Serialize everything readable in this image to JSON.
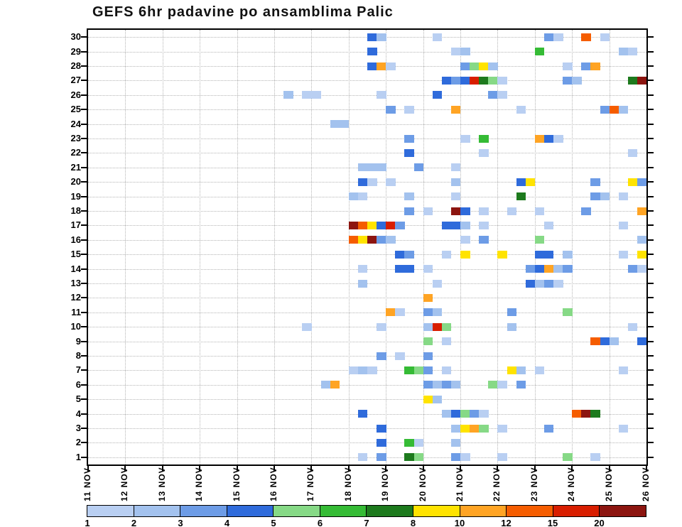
{
  "title": "GEFS 6hr padavine po ansamblima Palic",
  "chart_data": {
    "type": "heatmap",
    "title": "GEFS 6hr padavine po ansamblima Palic",
    "x_tick_labels": [
      "11 NOV",
      "12 NOV",
      "13 NOV",
      "14 NOV",
      "15 NOV",
      "16 NOV",
      "17 NOV",
      "18 NOV",
      "19 NOV",
      "20 NOV",
      "21 NOV",
      "22 NOV",
      "23 NOV",
      "24 NOV",
      "25 NOV",
      "26 NOV"
    ],
    "cols_per_day": 4,
    "n_cols": 60,
    "y_tick_labels": [
      "30",
      "29",
      "28",
      "27",
      "26",
      "25",
      "24",
      "23",
      "22",
      "21",
      "20",
      "19",
      "18",
      "17",
      "16",
      "15",
      "14",
      "13",
      "12",
      "11",
      "10",
      "9",
      "8",
      "7",
      "6",
      "5",
      "4",
      "3",
      "2",
      "1"
    ],
    "colorbar": {
      "tick_labels": [
        "1",
        "2",
        "3",
        "4",
        "5",
        "6",
        "7",
        "8",
        "10",
        "12",
        "15",
        "20"
      ],
      "values": [
        1,
        2,
        3,
        4,
        5,
        6,
        7,
        8,
        10,
        12,
        15,
        20
      ],
      "colors": [
        "#b9cff2",
        "#a3c2ee",
        "#6d9ce6",
        "#2f6bdb",
        "#86d986",
        "#35bb35",
        "#1d7a1d",
        "#ffe300",
        "#ffa424",
        "#f55d00",
        "#d81e00",
        "#8c1510"
      ]
    },
    "cells": [
      [
        30,
        30,
        4
      ],
      [
        30,
        31,
        2
      ],
      [
        30,
        37,
        1
      ],
      [
        30,
        49,
        3
      ],
      [
        30,
        50,
        1
      ],
      [
        30,
        53,
        12
      ],
      [
        30,
        55,
        1
      ],
      [
        29,
        30,
        4
      ],
      [
        29,
        39,
        1
      ],
      [
        29,
        40,
        2
      ],
      [
        29,
        48,
        6
      ],
      [
        29,
        57,
        2
      ],
      [
        29,
        58,
        1
      ],
      [
        28,
        30,
        4
      ],
      [
        28,
        31,
        10
      ],
      [
        28,
        32,
        1
      ],
      [
        28,
        40,
        3
      ],
      [
        28,
        41,
        5
      ],
      [
        28,
        42,
        8
      ],
      [
        28,
        43,
        2
      ],
      [
        28,
        51,
        1
      ],
      [
        28,
        53,
        3
      ],
      [
        28,
        54,
        10
      ],
      [
        27,
        38,
        4
      ],
      [
        27,
        39,
        3
      ],
      [
        27,
        40,
        4
      ],
      [
        27,
        41,
        15
      ],
      [
        27,
        42,
        7
      ],
      [
        27,
        43,
        5
      ],
      [
        27,
        44,
        1
      ],
      [
        27,
        51,
        3
      ],
      [
        27,
        52,
        2
      ],
      [
        27,
        58,
        7
      ],
      [
        27,
        59,
        20
      ],
      [
        26,
        21,
        2
      ],
      [
        26,
        23,
        1
      ],
      [
        26,
        24,
        1
      ],
      [
        26,
        31,
        1
      ],
      [
        26,
        37,
        4
      ],
      [
        26,
        43,
        3
      ],
      [
        26,
        44,
        1
      ],
      [
        25,
        32,
        3
      ],
      [
        25,
        34,
        1
      ],
      [
        25,
        39,
        10
      ],
      [
        25,
        46,
        1
      ],
      [
        25,
        55,
        3
      ],
      [
        25,
        56,
        12
      ],
      [
        25,
        57,
        2
      ],
      [
        24,
        26,
        2
      ],
      [
        24,
        27,
        2
      ],
      [
        23,
        34,
        3
      ],
      [
        23,
        40,
        1
      ],
      [
        23,
        42,
        6
      ],
      [
        23,
        48,
        10
      ],
      [
        23,
        49,
        4
      ],
      [
        23,
        50,
        1
      ],
      [
        22,
        34,
        4
      ],
      [
        22,
        42,
        1
      ],
      [
        22,
        58,
        1
      ],
      [
        21,
        29,
        2
      ],
      [
        21,
        30,
        2
      ],
      [
        21,
        31,
        2
      ],
      [
        21,
        35,
        3
      ],
      [
        21,
        39,
        1
      ],
      [
        20,
        29,
        4
      ],
      [
        20,
        30,
        1
      ],
      [
        20,
        32,
        1
      ],
      [
        20,
        39,
        2
      ],
      [
        20,
        46,
        4
      ],
      [
        20,
        47,
        8
      ],
      [
        20,
        54,
        3
      ],
      [
        20,
        58,
        8
      ],
      [
        20,
        59,
        3
      ],
      [
        19,
        28,
        2
      ],
      [
        19,
        29,
        1
      ],
      [
        19,
        34,
        2
      ],
      [
        19,
        39,
        1
      ],
      [
        19,
        46,
        7
      ],
      [
        19,
        54,
        3
      ],
      [
        19,
        55,
        2
      ],
      [
        19,
        57,
        1
      ],
      [
        18,
        34,
        3
      ],
      [
        18,
        36,
        1
      ],
      [
        18,
        39,
        20
      ],
      [
        18,
        40,
        4
      ],
      [
        18,
        42,
        1
      ],
      [
        18,
        45,
        1
      ],
      [
        18,
        48,
        1
      ],
      [
        18,
        53,
        3
      ],
      [
        18,
        59,
        10
      ],
      [
        17,
        28,
        20
      ],
      [
        17,
        29,
        12
      ],
      [
        17,
        30,
        8
      ],
      [
        17,
        31,
        4
      ],
      [
        17,
        32,
        15
      ],
      [
        17,
        33,
        3
      ],
      [
        17,
        38,
        4
      ],
      [
        17,
        39,
        4
      ],
      [
        17,
        40,
        2
      ],
      [
        17,
        42,
        1
      ],
      [
        17,
        49,
        1
      ],
      [
        17,
        57,
        1
      ],
      [
        16,
        28,
        12
      ],
      [
        16,
        29,
        8
      ],
      [
        16,
        30,
        20
      ],
      [
        16,
        31,
        3
      ],
      [
        16,
        32,
        2
      ],
      [
        16,
        40,
        1
      ],
      [
        16,
        42,
        3
      ],
      [
        16,
        48,
        5
      ],
      [
        16,
        59,
        2
      ],
      [
        15,
        33,
        4
      ],
      [
        15,
        34,
        3
      ],
      [
        15,
        38,
        1
      ],
      [
        15,
        40,
        8
      ],
      [
        15,
        44,
        8
      ],
      [
        15,
        48,
        4
      ],
      [
        15,
        49,
        4
      ],
      [
        15,
        51,
        2
      ],
      [
        15,
        57,
        1
      ],
      [
        15,
        59,
        8
      ],
      [
        14,
        29,
        1
      ],
      [
        14,
        33,
        4
      ],
      [
        14,
        34,
        4
      ],
      [
        14,
        36,
        1
      ],
      [
        14,
        47,
        3
      ],
      [
        14,
        48,
        4
      ],
      [
        14,
        49,
        10
      ],
      [
        14,
        50,
        2
      ],
      [
        14,
        51,
        3
      ],
      [
        14,
        58,
        3
      ],
      [
        14,
        59,
        1
      ],
      [
        13,
        29,
        2
      ],
      [
        13,
        37,
        1
      ],
      [
        13,
        47,
        4
      ],
      [
        13,
        48,
        2
      ],
      [
        13,
        49,
        3
      ],
      [
        13,
        50,
        1
      ],
      [
        12,
        36,
        10
      ],
      [
        11,
        32,
        10
      ],
      [
        11,
        33,
        1
      ],
      [
        11,
        36,
        3
      ],
      [
        11,
        37,
        2
      ],
      [
        11,
        45,
        3
      ],
      [
        11,
        51,
        5
      ],
      [
        10,
        23,
        1
      ],
      [
        10,
        31,
        1
      ],
      [
        10,
        36,
        2
      ],
      [
        10,
        37,
        15
      ],
      [
        10,
        38,
        5
      ],
      [
        10,
        45,
        2
      ],
      [
        10,
        58,
        1
      ],
      [
        9,
        36,
        5
      ],
      [
        9,
        38,
        1
      ],
      [
        9,
        54,
        12
      ],
      [
        9,
        55,
        4
      ],
      [
        9,
        56,
        2
      ],
      [
        9,
        59,
        4
      ],
      [
        8,
        31,
        3
      ],
      [
        8,
        33,
        1
      ],
      [
        8,
        36,
        3
      ],
      [
        7,
        28,
        1
      ],
      [
        7,
        29,
        2
      ],
      [
        7,
        30,
        1
      ],
      [
        7,
        34,
        6
      ],
      [
        7,
        35,
        5
      ],
      [
        7,
        36,
        3
      ],
      [
        7,
        38,
        1
      ],
      [
        7,
        45,
        8
      ],
      [
        7,
        46,
        2
      ],
      [
        7,
        48,
        1
      ],
      [
        7,
        57,
        1
      ],
      [
        6,
        25,
        2
      ],
      [
        6,
        26,
        10
      ],
      [
        6,
        36,
        3
      ],
      [
        6,
        37,
        2
      ],
      [
        6,
        38,
        3
      ],
      [
        6,
        39,
        2
      ],
      [
        6,
        43,
        5
      ],
      [
        6,
        44,
        1
      ],
      [
        6,
        46,
        3
      ],
      [
        5,
        36,
        8
      ],
      [
        5,
        37,
        2
      ],
      [
        4,
        29,
        4
      ],
      [
        4,
        38,
        2
      ],
      [
        4,
        39,
        4
      ],
      [
        4,
        40,
        5
      ],
      [
        4,
        41,
        3
      ],
      [
        4,
        42,
        1
      ],
      [
        4,
        52,
        12
      ],
      [
        4,
        53,
        20
      ],
      [
        4,
        54,
        7
      ],
      [
        3,
        31,
        4
      ],
      [
        3,
        39,
        2
      ],
      [
        3,
        40,
        8
      ],
      [
        3,
        41,
        10
      ],
      [
        3,
        42,
        5
      ],
      [
        3,
        44,
        1
      ],
      [
        3,
        49,
        3
      ],
      [
        3,
        57,
        1
      ],
      [
        2,
        31,
        4
      ],
      [
        2,
        34,
        6
      ],
      [
        2,
        35,
        1
      ],
      [
        2,
        39,
        2
      ],
      [
        1,
        29,
        1
      ],
      [
        1,
        31,
        3
      ],
      [
        1,
        34,
        7
      ],
      [
        1,
        35,
        5
      ],
      [
        1,
        39,
        3
      ],
      [
        1,
        40,
        1
      ],
      [
        1,
        44,
        1
      ],
      [
        1,
        51,
        5
      ],
      [
        1,
        54,
        1
      ]
    ]
  }
}
